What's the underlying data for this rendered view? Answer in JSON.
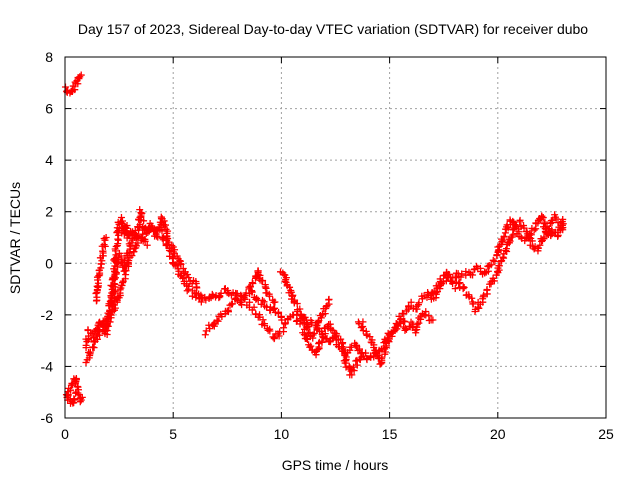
{
  "chart_data": {
    "type": "scatter",
    "title": "Day 157 of 2023, Sidereal Day-to-day VTEC variation (SDTVAR) for receiver dubo",
    "xlabel": "GPS time / hours",
    "ylabel": "SDTVAR / TECUs",
    "xlim": [
      0,
      25
    ],
    "ylim": [
      -6,
      8
    ],
    "xticks": [
      0,
      5,
      10,
      15,
      20,
      25
    ],
    "yticks": [
      -6,
      -4,
      -2,
      0,
      2,
      4,
      6,
      8
    ],
    "grid": true,
    "marker": "+",
    "series": [
      {
        "name": "dubo",
        "color": "#ff0000",
        "path": [
          [
            0.0,
            6.8
          ],
          [
            0.15,
            6.7
          ],
          [
            0.3,
            6.6
          ],
          [
            0.4,
            6.8
          ],
          [
            0.5,
            7.0
          ],
          [
            0.6,
            7.1
          ],
          [
            0.75,
            7.3
          ]
        ]
      },
      {
        "name": "dubo",
        "color": "#ff0000",
        "path": [
          [
            0.0,
            -5.1
          ],
          [
            0.2,
            -5.3
          ],
          [
            0.35,
            -5.5
          ],
          [
            0.45,
            -5.2
          ],
          [
            0.6,
            -5.0
          ],
          [
            0.7,
            -5.3
          ],
          [
            0.8,
            -5.2
          ]
        ]
      },
      {
        "name": "dubo",
        "color": "#ff0000",
        "path": [
          [
            0.1,
            -5.2
          ],
          [
            0.2,
            -4.9
          ],
          [
            0.35,
            -4.6
          ],
          [
            0.5,
            -4.4
          ],
          [
            0.6,
            -4.8
          ]
        ]
      },
      {
        "name": "dubo",
        "color": "#ff0000",
        "path": [
          [
            1.0,
            -3.2
          ],
          [
            1.1,
            -2.6
          ],
          [
            1.3,
            -2.8
          ],
          [
            1.5,
            -2.5
          ],
          [
            1.7,
            -2.2
          ],
          [
            1.9,
            -2.8
          ],
          [
            2.0,
            -2.0
          ],
          [
            2.1,
            -1.5
          ],
          [
            2.2,
            -0.8
          ],
          [
            2.3,
            0.0
          ],
          [
            2.4,
            0.8
          ],
          [
            2.5,
            1.5
          ],
          [
            2.6,
            1.7
          ],
          [
            2.7,
            1.2
          ],
          [
            2.8,
            1.5
          ],
          [
            2.9,
            1.0
          ],
          [
            3.0,
            1.3
          ],
          [
            3.2,
            1.0
          ],
          [
            3.4,
            1.4
          ],
          [
            3.5,
            2.0
          ],
          [
            3.6,
            1.5
          ],
          [
            3.8,
            1.2
          ],
          [
            4.0,
            1.5
          ],
          [
            4.2,
            1.0
          ],
          [
            4.4,
            1.5
          ],
          [
            4.5,
            1.8
          ],
          [
            4.6,
            1.4
          ],
          [
            4.8,
            0.8
          ],
          [
            5.0,
            0.5
          ],
          [
            5.2,
            0.2
          ],
          [
            5.4,
            -0.2
          ],
          [
            5.6,
            -0.5
          ],
          [
            5.8,
            -0.7
          ],
          [
            6.0,
            -0.8
          ],
          [
            6.2,
            -1.1
          ],
          [
            6.4,
            -1.3
          ],
          [
            6.6,
            -1.4
          ],
          [
            6.8,
            -1.3
          ],
          [
            7.0,
            -1.3
          ],
          [
            7.2,
            -1.2
          ],
          [
            7.4,
            -1.0
          ],
          [
            7.6,
            -1.1
          ],
          [
            7.8,
            -1.3
          ],
          [
            8.0,
            -1.2
          ],
          [
            8.2,
            -1.4
          ],
          [
            8.4,
            -1.2
          ],
          [
            8.6,
            -1.0
          ],
          [
            8.8,
            -1.3
          ],
          [
            9.0,
            -1.5
          ],
          [
            9.2,
            -1.6
          ],
          [
            9.4,
            -1.8
          ],
          [
            9.6,
            -1.7
          ],
          [
            9.8,
            -1.9
          ],
          [
            10.0,
            -2.1
          ],
          [
            10.2,
            -2.3
          ],
          [
            10.4,
            -2.1
          ],
          [
            10.6,
            -2.0
          ],
          [
            10.8,
            -2.3
          ],
          [
            11.0,
            -2.1
          ],
          [
            11.2,
            -2.4
          ],
          [
            11.4,
            -2.3
          ],
          [
            11.6,
            -2.5
          ],
          [
            11.8,
            -2.7
          ],
          [
            12.0,
            -2.9
          ],
          [
            12.2,
            -3.0
          ],
          [
            12.4,
            -2.8
          ],
          [
            12.6,
            -3.1
          ],
          [
            12.8,
            -3.3
          ],
          [
            13.0,
            -3.6
          ],
          [
            13.2,
            -3.3
          ],
          [
            13.4,
            -3.1
          ],
          [
            13.6,
            -3.3
          ],
          [
            13.8,
            -3.5
          ],
          [
            14.0,
            -3.7
          ],
          [
            14.2,
            -3.6
          ],
          [
            14.4,
            -3.5
          ],
          [
            14.6,
            -3.3
          ],
          [
            14.8,
            -3.1
          ],
          [
            15.0,
            -2.8
          ],
          [
            15.2,
            -2.6
          ],
          [
            15.4,
            -2.3
          ],
          [
            15.6,
            -2.0
          ],
          [
            15.8,
            -1.8
          ],
          [
            16.0,
            -1.6
          ],
          [
            16.2,
            -1.8
          ],
          [
            16.4,
            -1.5
          ],
          [
            16.6,
            -1.3
          ],
          [
            16.8,
            -1.2
          ],
          [
            17.0,
            -1.1
          ],
          [
            17.2,
            -0.9
          ],
          [
            17.4,
            -0.8
          ],
          [
            17.6,
            -0.6
          ],
          [
            17.8,
            -0.5
          ],
          [
            18.0,
            -0.6
          ],
          [
            18.2,
            -0.4
          ],
          [
            18.4,
            -0.5
          ],
          [
            18.6,
            -0.3
          ],
          [
            18.8,
            -0.4
          ],
          [
            19.0,
            -0.2
          ],
          [
            19.2,
            -0.3
          ],
          [
            19.4,
            -0.4
          ],
          [
            19.6,
            -0.1
          ],
          [
            19.8,
            0.1
          ],
          [
            20.0,
            0.4
          ],
          [
            20.2,
            0.9
          ],
          [
            20.4,
            1.3
          ],
          [
            20.6,
            1.7
          ],
          [
            20.8,
            1.5
          ],
          [
            21.0,
            1.1
          ],
          [
            21.2,
            0.9
          ],
          [
            21.4,
            1.1
          ],
          [
            21.6,
            0.7
          ],
          [
            21.8,
            0.5
          ],
          [
            22.0,
            0.8
          ],
          [
            22.2,
            1.1
          ],
          [
            22.4,
            1.5
          ],
          [
            22.6,
            1.8
          ],
          [
            22.8,
            1.6
          ],
          [
            23.0,
            1.3
          ]
        ]
      },
      {
        "name": "dubo",
        "color": "#ff0000",
        "path": [
          [
            1.0,
            -3.8
          ],
          [
            1.2,
            -3.4
          ],
          [
            1.4,
            -3.0
          ],
          [
            1.6,
            -2.6
          ],
          [
            1.8,
            -2.3
          ],
          [
            2.0,
            -2.4
          ],
          [
            2.2,
            -1.6
          ],
          [
            2.3,
            -0.8
          ],
          [
            2.4,
            -0.1
          ],
          [
            2.5,
            0.3
          ],
          [
            2.7,
            -0.1
          ],
          [
            2.9,
            0.4
          ],
          [
            3.1,
            0.8
          ],
          [
            3.3,
            1.1
          ],
          [
            3.5,
            0.9
          ],
          [
            3.7,
            1.2
          ],
          [
            3.9,
            1.4
          ],
          [
            4.1,
            1.2
          ],
          [
            4.3,
            1.3
          ],
          [
            4.5,
            1.1
          ],
          [
            4.7,
            0.7
          ],
          [
            4.9,
            0.3
          ],
          [
            5.1,
            -0.1
          ],
          [
            5.3,
            -0.4
          ],
          [
            5.5,
            -0.7
          ],
          [
            5.7,
            -1.0
          ],
          [
            5.9,
            -1.2
          ],
          [
            6.1,
            -1.3
          ],
          [
            6.3,
            -1.5
          ]
        ]
      },
      {
        "name": "dubo",
        "color": "#ff0000",
        "path": [
          [
            1.4,
            -1.5
          ],
          [
            1.5,
            -0.8
          ],
          [
            1.6,
            -0.2
          ],
          [
            1.7,
            0.3
          ],
          [
            1.8,
            0.7
          ],
          [
            1.9,
            1.0
          ]
        ]
      },
      {
        "name": "dubo",
        "color": "#ff0000",
        "path": [
          [
            2.2,
            -1.9
          ],
          [
            2.4,
            -1.4
          ],
          [
            2.6,
            -0.9
          ],
          [
            2.8,
            -0.4
          ],
          [
            3.0,
            0.2
          ],
          [
            3.2,
            0.5
          ],
          [
            3.4,
            0.8
          ],
          [
            3.6,
            1.0
          ],
          [
            3.8,
            0.7
          ]
        ]
      },
      {
        "name": "dubo",
        "color": "#ff0000",
        "path": [
          [
            6.5,
            -2.7
          ],
          [
            6.7,
            -2.5
          ],
          [
            6.9,
            -2.3
          ],
          [
            7.1,
            -2.2
          ],
          [
            7.3,
            -2.0
          ],
          [
            7.5,
            -1.9
          ],
          [
            7.7,
            -1.6
          ],
          [
            7.9,
            -1.4
          ],
          [
            8.1,
            -1.6
          ],
          [
            8.3,
            -1.4
          ],
          [
            8.5,
            -1.6
          ],
          [
            8.7,
            -1.8
          ],
          [
            8.9,
            -2.0
          ],
          [
            9.1,
            -2.2
          ],
          [
            9.3,
            -2.5
          ],
          [
            9.5,
            -2.7
          ],
          [
            9.7,
            -2.9
          ],
          [
            9.9,
            -2.7
          ],
          [
            10.1,
            -2.5
          ]
        ]
      },
      {
        "name": "dubo",
        "color": "#ff0000",
        "path": [
          [
            8.5,
            -1.0
          ],
          [
            8.7,
            -0.8
          ],
          [
            8.9,
            -0.3
          ],
          [
            9.1,
            -0.7
          ],
          [
            9.3,
            -1.0
          ],
          [
            9.5,
            -1.3
          ],
          [
            9.7,
            -1.5
          ]
        ]
      },
      {
        "name": "dubo",
        "color": "#ff0000",
        "path": [
          [
            10.0,
            -0.3
          ],
          [
            10.2,
            -0.7
          ],
          [
            10.4,
            -1.1
          ],
          [
            10.6,
            -1.5
          ],
          [
            10.8,
            -1.8
          ],
          [
            11.0,
            -2.2
          ],
          [
            11.2,
            -2.6
          ],
          [
            11.4,
            -2.9
          ],
          [
            11.6,
            -2.6
          ],
          [
            11.8,
            -2.2
          ],
          [
            12.0,
            -1.8
          ],
          [
            12.2,
            -1.4
          ]
        ]
      },
      {
        "name": "dubo",
        "color": "#ff0000",
        "path": [
          [
            11.0,
            -2.7
          ],
          [
            11.2,
            -3.0
          ],
          [
            11.4,
            -3.3
          ],
          [
            11.6,
            -3.5
          ],
          [
            11.8,
            -3.1
          ],
          [
            12.0,
            -2.6
          ],
          [
            12.2,
            -2.3
          ],
          [
            12.4,
            -2.6
          ],
          [
            12.6,
            -2.9
          ],
          [
            12.8,
            -3.1
          ],
          [
            13.0,
            -3.9
          ],
          [
            13.2,
            -4.3
          ],
          [
            13.4,
            -4.0
          ],
          [
            13.6,
            -3.7
          ],
          [
            13.8,
            -3.6
          ]
        ]
      },
      {
        "name": "dubo",
        "color": "#ff0000",
        "path": [
          [
            13.6,
            -2.2
          ],
          [
            13.8,
            -2.5
          ],
          [
            14.0,
            -2.8
          ],
          [
            14.2,
            -3.0
          ],
          [
            14.4,
            -3.6
          ],
          [
            14.6,
            -3.9
          ],
          [
            14.8,
            -3.4
          ],
          [
            15.0,
            -2.9
          ],
          [
            15.2,
            -2.7
          ],
          [
            15.4,
            -2.4
          ],
          [
            15.6,
            -2.2
          ],
          [
            15.8,
            -2.6
          ],
          [
            16.0,
            -2.3
          ],
          [
            16.2,
            -2.6
          ],
          [
            16.4,
            -2.2
          ],
          [
            16.6,
            -1.9
          ],
          [
            16.8,
            -2.1
          ],
          [
            17.0,
            -2.2
          ]
        ]
      },
      {
        "name": "dubo",
        "color": "#ff0000",
        "path": [
          [
            17.0,
            -1.4
          ],
          [
            17.2,
            -1.1
          ],
          [
            17.4,
            -0.6
          ],
          [
            17.6,
            -0.3
          ],
          [
            17.8,
            -0.6
          ],
          [
            18.0,
            -0.9
          ],
          [
            18.2,
            -0.7
          ],
          [
            18.4,
            -1.0
          ],
          [
            18.6,
            -1.2
          ],
          [
            18.8,
            -1.5
          ],
          [
            19.0,
            -1.8
          ],
          [
            19.2,
            -1.5
          ],
          [
            19.4,
            -1.2
          ],
          [
            19.6,
            -0.9
          ],
          [
            19.8,
            -0.6
          ],
          [
            20.0,
            -0.3
          ],
          [
            20.2,
            0.2
          ],
          [
            20.4,
            0.5
          ],
          [
            20.6,
            1.0
          ],
          [
            20.8,
            1.5
          ]
        ]
      },
      {
        "name": "dubo",
        "color": "#ff0000",
        "path": [
          [
            21.0,
            1.6
          ],
          [
            21.2,
            1.3
          ],
          [
            21.4,
            1.0
          ],
          [
            21.6,
            1.2
          ],
          [
            21.8,
            1.6
          ],
          [
            22.0,
            1.9
          ],
          [
            22.2,
            1.4
          ],
          [
            22.4,
            1.0
          ],
          [
            22.6,
            1.3
          ],
          [
            22.8,
            1.1
          ],
          [
            23.0,
            1.7
          ]
        ]
      }
    ]
  }
}
